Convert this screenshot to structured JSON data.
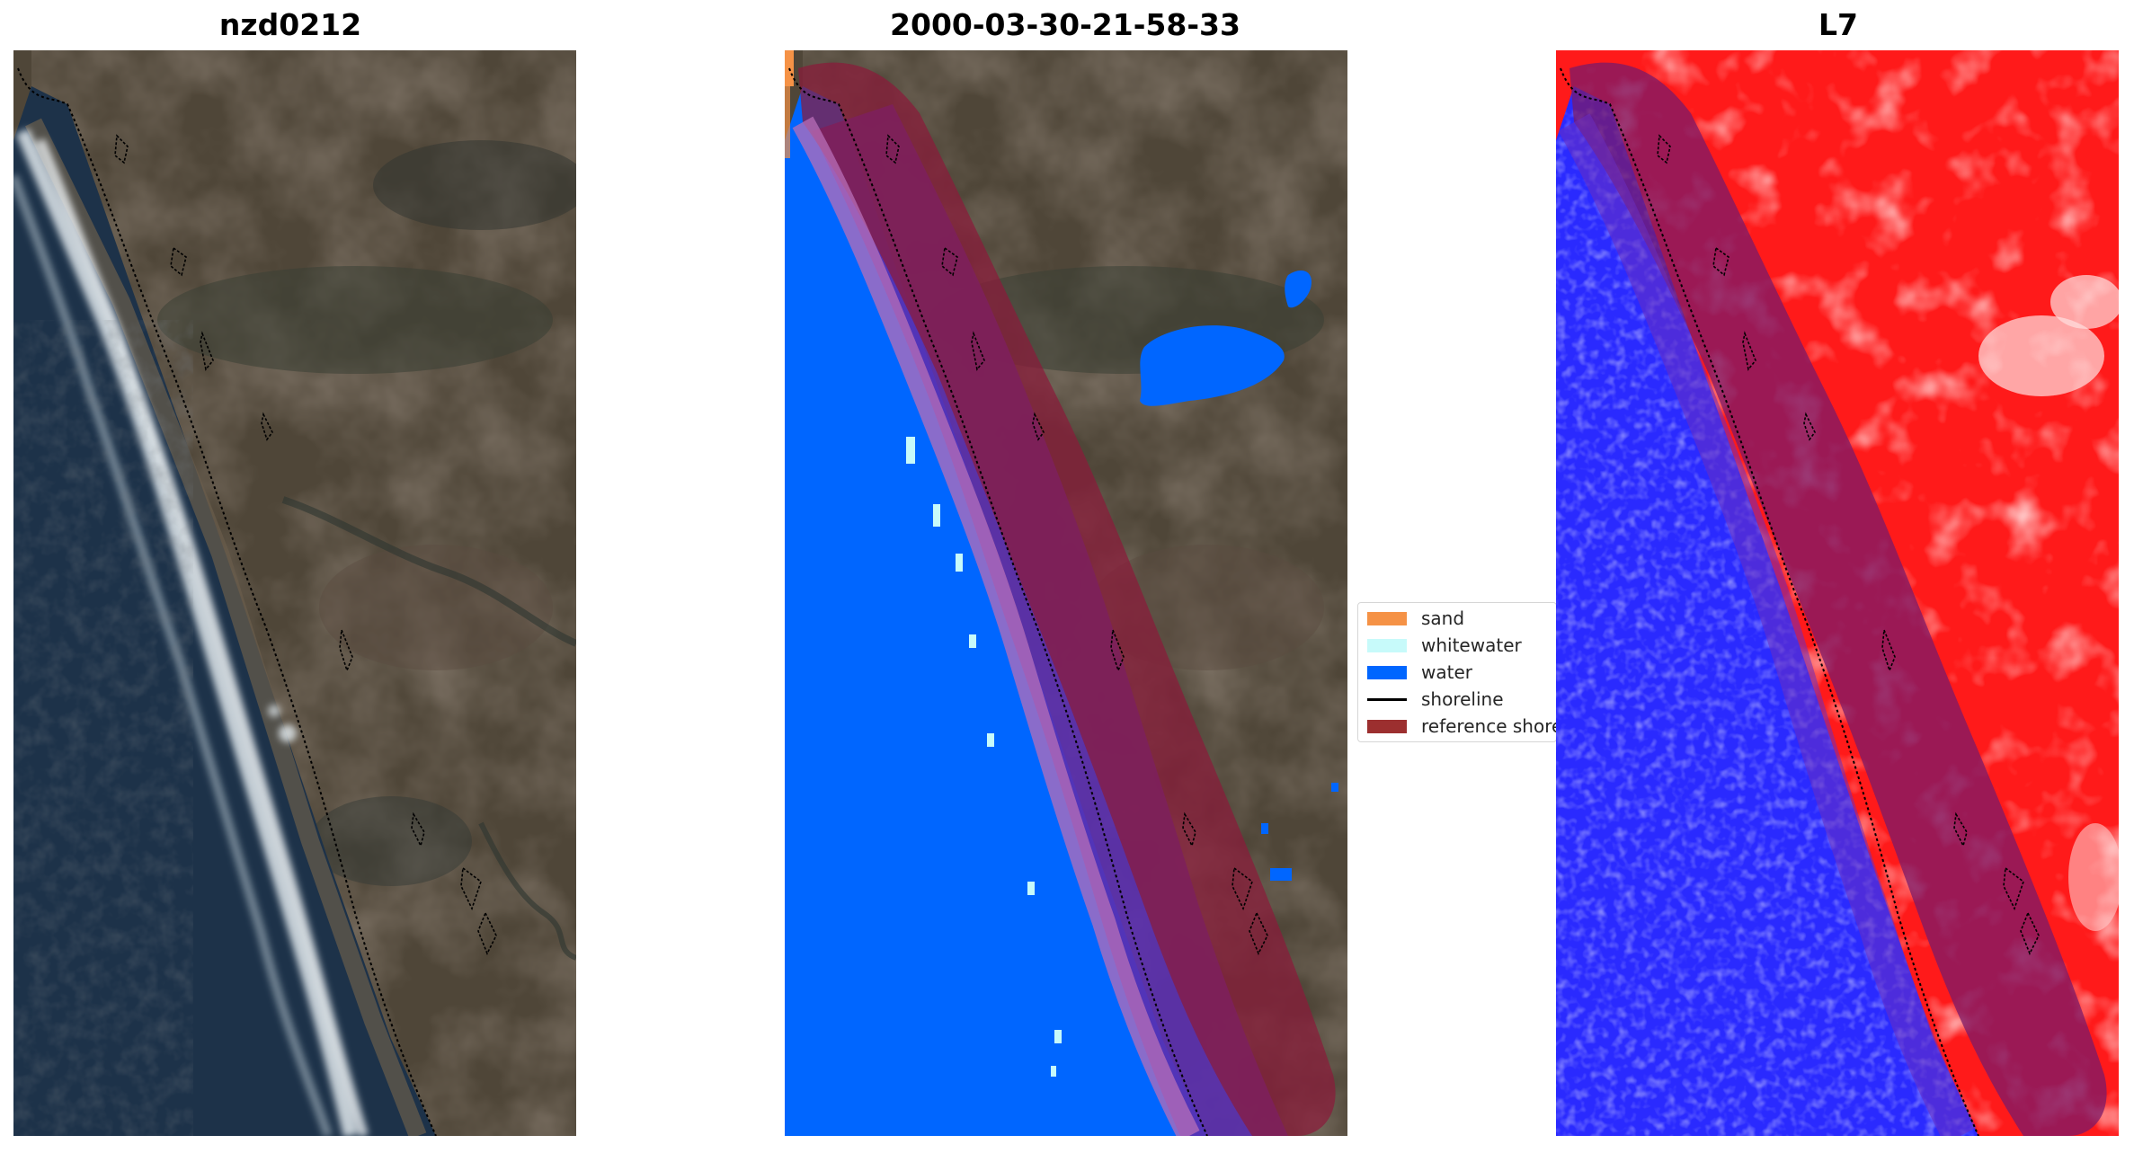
{
  "panels": [
    {
      "title": "nzd0212",
      "view": "rgb-image"
    },
    {
      "title": "2000-03-30-21-58-33",
      "view": "classified-image"
    },
    {
      "title": "L7",
      "view": "mndwi-image"
    }
  ],
  "legend": {
    "items": [
      {
        "label": "sand",
        "color": "#f59246",
        "kind": "patch"
      },
      {
        "label": "whitewater",
        "color": "#c7fafa",
        "kind": "patch"
      },
      {
        "label": "water",
        "color": "#0066ff",
        "kind": "patch"
      },
      {
        "label": "shoreline",
        "color": "#000000",
        "kind": "line"
      },
      {
        "label": "reference shoreline buffer",
        "color": "#9c2f2f",
        "kind": "patch"
      }
    ]
  },
  "colors": {
    "ocean_dark": "#1b2f46",
    "land_brown": "#4f4638",
    "surf_white": "#e8eef0",
    "class_water": "#0066ff",
    "class_whitewater": "#c7fafa",
    "class_sand": "#f59246",
    "buffer_red": "#8b1a3a",
    "index_red": "#ff1a1a",
    "index_blue": "#2a2aff"
  }
}
